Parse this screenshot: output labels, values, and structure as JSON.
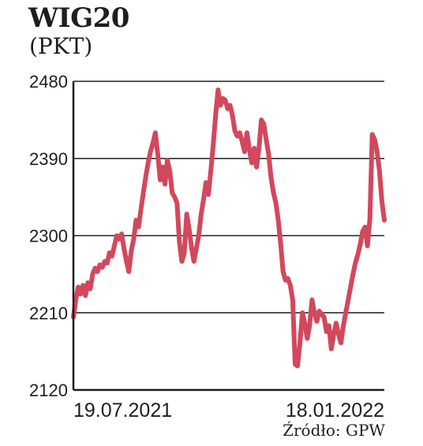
{
  "title": "WIG20",
  "unit": "(PKT)",
  "source": "Źródło: GPW",
  "colors": {
    "line": "#d2485c",
    "grid": "#1e1e1e",
    "text": "#1e1e1e"
  },
  "chart_data": {
    "type": "line",
    "title": "WIG20",
    "ylabel": "(PKT)",
    "ylim": [
      2120,
      2480
    ],
    "yticks": [
      2480,
      2390,
      2300,
      2210,
      2120
    ],
    "x_tick_labels": [
      "19.07.2021",
      "18.01.2022"
    ],
    "grid": true,
    "series": [
      {
        "values": [
          2205,
          2225,
          2240,
          2232,
          2242,
          2230,
          2245,
          2238,
          2255,
          2262,
          2258,
          2266,
          2263,
          2270,
          2268,
          2280,
          2276,
          2288,
          2300,
          2296,
          2302,
          2285,
          2270,
          2258,
          2282,
          2296,
          2318,
          2310,
          2330,
          2350,
          2368,
          2385,
          2398,
          2408,
          2420,
          2395,
          2365,
          2380,
          2360,
          2388,
          2375,
          2350,
          2345,
          2338,
          2292,
          2270,
          2280,
          2325,
          2308,
          2286,
          2270,
          2285,
          2300,
          2325,
          2342,
          2362,
          2348,
          2375,
          2405,
          2440,
          2470,
          2452,
          2460,
          2458,
          2448,
          2452,
          2440,
          2422,
          2416,
          2420,
          2410,
          2398,
          2420,
          2400,
          2385,
          2402,
          2380,
          2402,
          2435,
          2430,
          2412,
          2395,
          2368,
          2350,
          2338,
          2318,
          2290,
          2258,
          2248,
          2250,
          2242,
          2225,
          2150,
          2148,
          2175,
          2210,
          2198,
          2180,
          2195,
          2225,
          2210,
          2200,
          2212,
          2208,
          2205,
          2188,
          2195,
          2168,
          2185,
          2198,
          2185,
          2175,
          2195,
          2210,
          2225,
          2240,
          2255,
          2268,
          2278,
          2290,
          2305,
          2310,
          2288,
          2320,
          2418,
          2412,
          2398,
          2375,
          2340,
          2318
        ]
      }
    ]
  }
}
